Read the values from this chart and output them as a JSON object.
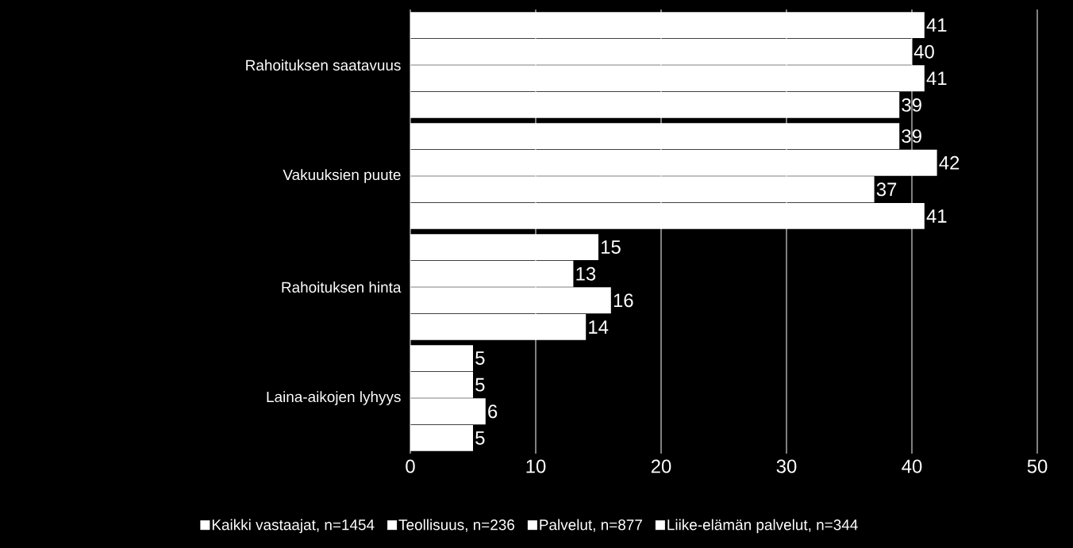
{
  "chart_data": {
    "type": "bar",
    "orientation": "horizontal",
    "categories": [
      "Rahoituksen saatavuus",
      "Vakuuksien puute",
      "Rahoituksen hinta",
      "Laina-aikojen lyhyys"
    ],
    "series": [
      {
        "name": "Kaikki vastaajat, n=1454",
        "color": "#ffffff",
        "values": [
          41,
          39,
          15,
          5
        ]
      },
      {
        "name": "Teollisuus, n=236",
        "color": "#ffffff",
        "values": [
          40,
          42,
          13,
          5
        ]
      },
      {
        "name": "Palvelut, n=877",
        "color": "#ffffff",
        "values": [
          41,
          37,
          16,
          6
        ]
      },
      {
        "name": "Liike-elämän palvelut, n=344",
        "color": "#ffffff",
        "values": [
          39,
          41,
          14,
          5
        ]
      }
    ],
    "xlim": [
      0,
      50
    ],
    "xticks": [
      0,
      10,
      20,
      30,
      40,
      50
    ],
    "grid": "x",
    "legend": "bottom",
    "data_labels": true
  }
}
